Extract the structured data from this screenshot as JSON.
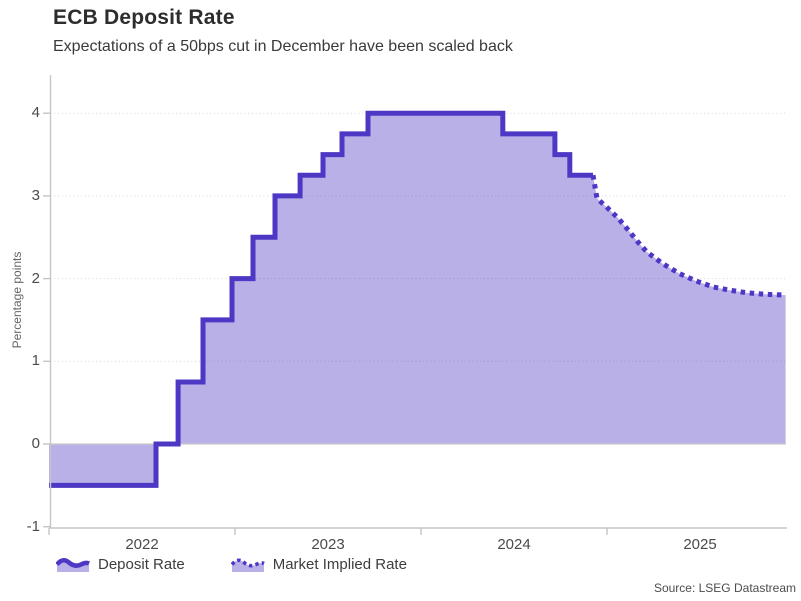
{
  "chart_data": {
    "type": "line",
    "title": "ECB Deposit Rate",
    "subtitle": "Expectations of a 50bps cut in December have been scaled back",
    "ylabel": "Percentage points",
    "xlabel": "",
    "source": "Source: LSEG Datastream",
    "yticks": [
      -1,
      0,
      1,
      2,
      3,
      4
    ],
    "ylim": [
      -1,
      4.3
    ],
    "xticks": [
      2022,
      2023,
      2024,
      2025
    ],
    "xlim": [
      2022,
      2025.96
    ],
    "grid": "dotted-horizontal",
    "legend_position": "bottom-left",
    "colors": {
      "line": "#4c38c4",
      "fill": "rgba(77,58,195,0.40)",
      "legend_fill": "#b9b0e7"
    },
    "series": [
      {
        "name": "Deposit Rate",
        "style": "solid-step",
        "points": [
          [
            2022.0,
            -0.5
          ],
          [
            2022.575,
            0
          ],
          [
            2022.694,
            0.75
          ],
          [
            2022.828,
            1.5
          ],
          [
            2022.984,
            2.0
          ],
          [
            2023.097,
            2.5
          ],
          [
            2023.215,
            3.0
          ],
          [
            2023.35,
            3.25
          ],
          [
            2023.473,
            3.5
          ],
          [
            2023.575,
            3.75
          ],
          [
            2023.715,
            4.0
          ],
          [
            2024.44,
            3.75
          ],
          [
            2024.72,
            3.5
          ],
          [
            2024.8,
            3.25
          ],
          [
            2024.925,
            3.25
          ]
        ]
      },
      {
        "name": "Market Implied Rate",
        "style": "dotted",
        "points": [
          [
            2024.925,
            3.25
          ],
          [
            2024.946,
            2.97
          ],
          [
            2025.005,
            2.85
          ],
          [
            2025.06,
            2.73
          ],
          [
            2025.113,
            2.59
          ],
          [
            2025.167,
            2.44
          ],
          [
            2025.215,
            2.32
          ],
          [
            2025.3,
            2.18
          ],
          [
            2025.39,
            2.06
          ],
          [
            2025.48,
            1.97
          ],
          [
            2025.57,
            1.9
          ],
          [
            2025.66,
            1.86
          ],
          [
            2025.75,
            1.83
          ],
          [
            2025.85,
            1.81
          ],
          [
            2025.96,
            1.8
          ]
        ]
      }
    ]
  }
}
